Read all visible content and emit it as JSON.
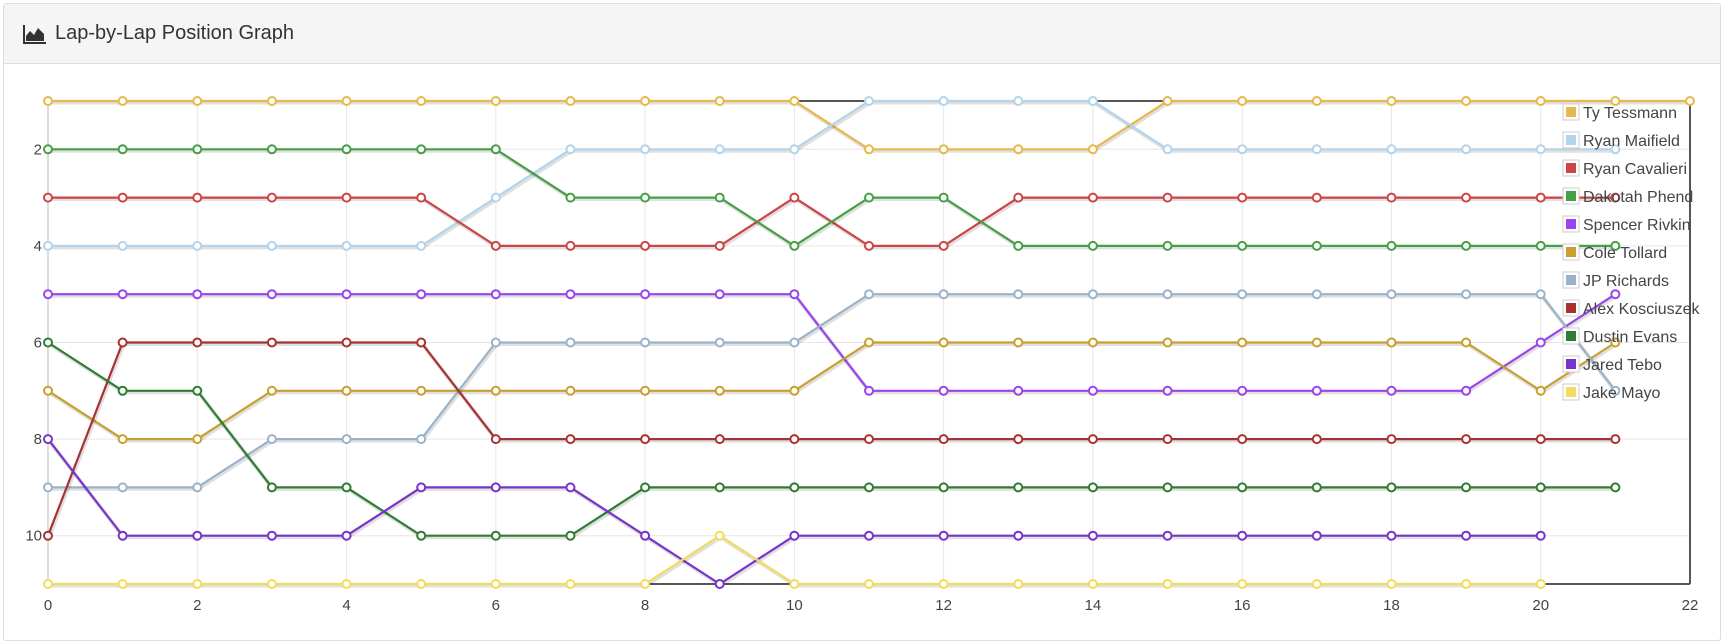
{
  "panel": {
    "title": "Lap-by-Lap Position Graph",
    "icon": "area-chart-icon"
  },
  "chart_data": {
    "type": "line",
    "title": "Lap-by-Lap Position Graph",
    "xlabel": "",
    "ylabel": "",
    "xlim": [
      0,
      22
    ],
    "ylim": [
      1,
      11
    ],
    "y_inverted": true,
    "x_ticks": [
      0,
      2,
      4,
      6,
      8,
      10,
      12,
      14,
      16,
      18,
      20,
      22
    ],
    "y_ticks": [
      2,
      4,
      6,
      8,
      10
    ],
    "grid": true,
    "legend_position": "top-right",
    "series": [
      {
        "name": "Ty Tessmann",
        "color": "#e8b84a",
        "values": [
          1,
          1,
          1,
          1,
          1,
          1,
          1,
          1,
          1,
          1,
          1,
          2,
          2,
          2,
          2,
          1,
          1,
          1,
          1,
          1,
          1,
          1,
          1
        ]
      },
      {
        "name": "Ryan Maifield",
        "color": "#b3d4ea",
        "values": [
          4,
          4,
          4,
          4,
          4,
          4,
          3,
          2,
          2,
          2,
          2,
          1,
          1,
          1,
          1,
          2,
          2,
          2,
          2,
          2,
          2,
          2
        ]
      },
      {
        "name": "Ryan Cavalieri",
        "color": "#cc4444",
        "values": [
          3,
          3,
          3,
          3,
          3,
          3,
          4,
          4,
          4,
          4,
          3,
          4,
          4,
          3,
          3,
          3,
          3,
          3,
          3,
          3,
          3,
          3
        ]
      },
      {
        "name": "Dakotah Phend",
        "color": "#44a044",
        "values": [
          2,
          2,
          2,
          2,
          2,
          2,
          2,
          3,
          3,
          3,
          4,
          3,
          3,
          4,
          4,
          4,
          4,
          4,
          4,
          4,
          4,
          4
        ]
      },
      {
        "name": "Spencer Rivkin",
        "color": "#9944ee",
        "values": [
          5,
          5,
          5,
          5,
          5,
          5,
          5,
          5,
          5,
          5,
          5,
          7,
          7,
          7,
          7,
          7,
          7,
          7,
          7,
          7,
          6,
          5
        ]
      },
      {
        "name": "Cole Tollard",
        "color": "#c9a030",
        "values": [
          7,
          8,
          8,
          7,
          7,
          7,
          7,
          7,
          7,
          7,
          7,
          6,
          6,
          6,
          6,
          6,
          6,
          6,
          6,
          6,
          7,
          6
        ]
      },
      {
        "name": "JP Richards",
        "color": "#9ab3c8",
        "values": [
          9,
          9,
          9,
          8,
          8,
          8,
          6,
          6,
          6,
          6,
          6,
          5,
          5,
          5,
          5,
          5,
          5,
          5,
          5,
          5,
          5,
          7
        ]
      },
      {
        "name": "Alex Kosciuszek",
        "color": "#a83232",
        "values": [
          10,
          6,
          6,
          6,
          6,
          6,
          8,
          8,
          8,
          8,
          8,
          8,
          8,
          8,
          8,
          8,
          8,
          8,
          8,
          8,
          8,
          8
        ]
      },
      {
        "name": "Dustin Evans",
        "color": "#2e7d32",
        "values": [
          6,
          7,
          7,
          9,
          9,
          10,
          10,
          10,
          9,
          9,
          9,
          9,
          9,
          9,
          9,
          9,
          9,
          9,
          9,
          9,
          9,
          9
        ]
      },
      {
        "name": "Jared Tebo",
        "color": "#7733cc",
        "values": [
          8,
          10,
          10,
          10,
          10,
          9,
          9,
          9,
          10,
          11,
          10,
          10,
          10,
          10,
          10,
          10,
          10,
          10,
          10,
          10,
          10
        ]
      },
      {
        "name": "Jake Mayo",
        "color": "#f2dc5d",
        "values": [
          11,
          11,
          11,
          11,
          11,
          11,
          11,
          11,
          11,
          10,
          11,
          11,
          11,
          11,
          11,
          11,
          11,
          11,
          11,
          11,
          11
        ]
      }
    ]
  }
}
